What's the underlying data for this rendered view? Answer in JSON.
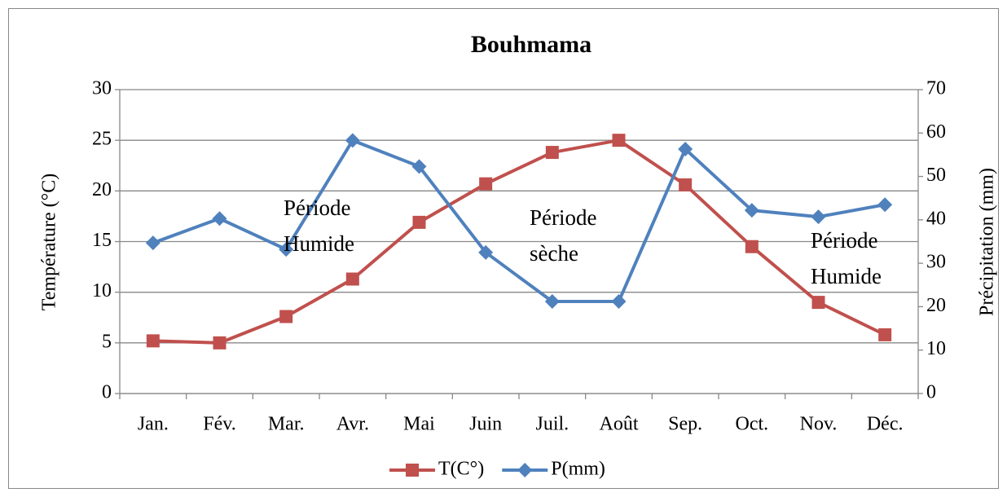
{
  "chart_data": {
    "type": "line",
    "title": "Bouhmama",
    "ylabel": "Température (°C)",
    "y2label": "Précipitation (mm)",
    "categories": [
      "Jan.",
      "Fév.",
      "Mar.",
      "Avr.",
      "Mai",
      "Juin",
      "Juil.",
      "Août",
      "Sep.",
      "Oct.",
      "Nov.",
      "Déc."
    ],
    "series": [
      {
        "name": "T(C°)",
        "color": "#c0504d",
        "marker": "square",
        "axis": "y",
        "values": [
          5.2,
          5.0,
          7.6,
          11.3,
          16.9,
          20.7,
          23.8,
          25.0,
          20.6,
          14.5,
          9.0,
          5.8
        ]
      },
      {
        "name": "P(mm)",
        "color": "#4f81bd",
        "marker": "diamond",
        "axis": "y2",
        "values": [
          34.7,
          40.3,
          33.2,
          58.3,
          52.3,
          32.5,
          21.2,
          21.2,
          56.3,
          42.2,
          40.7,
          43.5
        ]
      }
    ],
    "ylim": [
      0,
      30
    ],
    "yticks": [
      0,
      5,
      10,
      15,
      20,
      25,
      30
    ],
    "y2lim": [
      0,
      70
    ],
    "y2ticks": [
      0,
      10,
      20,
      30,
      40,
      50,
      60,
      70
    ],
    "grid": true,
    "legend": "bottom",
    "annotations": [
      {
        "lines": [
          "Période",
          "Humide"
        ]
      },
      {
        "lines": [
          "Période",
          "sèche"
        ]
      },
      {
        "lines": [
          "Période",
          "Humide"
        ]
      }
    ]
  }
}
